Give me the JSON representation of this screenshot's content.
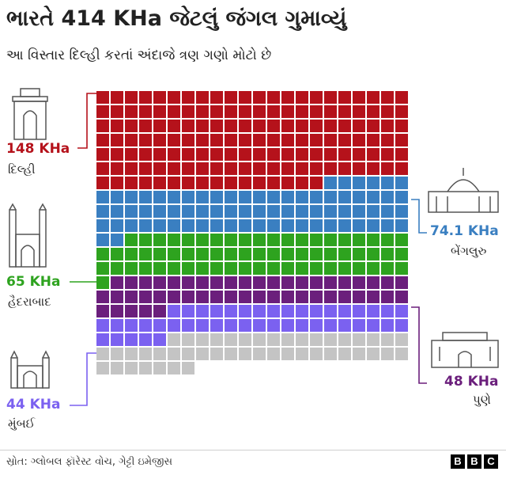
{
  "title": "ભારતે 414 KHa જેટલું જંગલ ગુમાવ્યું",
  "subtitle": "આ વિસ્તાર દિલ્હી કરતાં અંદાજે ત્રણ ગણો મોટો છે",
  "source": "સ્રોત: ગ્લોબલ ફૉરેસ્ટ વોચ, ગેટ્ટી ઇમેજીસ",
  "logo": [
    "B",
    "B",
    "C"
  ],
  "chart_data": {
    "type": "waffle",
    "total_label": "414 KHa",
    "series": [
      {
        "name": "દિલ્હી",
        "label": "148 KHa",
        "value": 148,
        "color": "#b5121b"
      },
      {
        "name": "બેંગલુરુ",
        "label": "74.1 KHa",
        "value": 74.1,
        "color": "#3a7fc1"
      },
      {
        "name": "હૈદરાબાદ",
        "label": "65 KHa",
        "value": 65,
        "color": "#2ea31f"
      },
      {
        "name": "પુણે",
        "label": "48 KHa",
        "value": 48,
        "color": "#6b1f7c"
      },
      {
        "name": "મુંબઈ",
        "label": "44 KHa",
        "value": 44,
        "color": "#7b61f0"
      }
    ],
    "remainder_color": "#c4c4c4",
    "columns": 22,
    "unit_per_square": 1
  }
}
